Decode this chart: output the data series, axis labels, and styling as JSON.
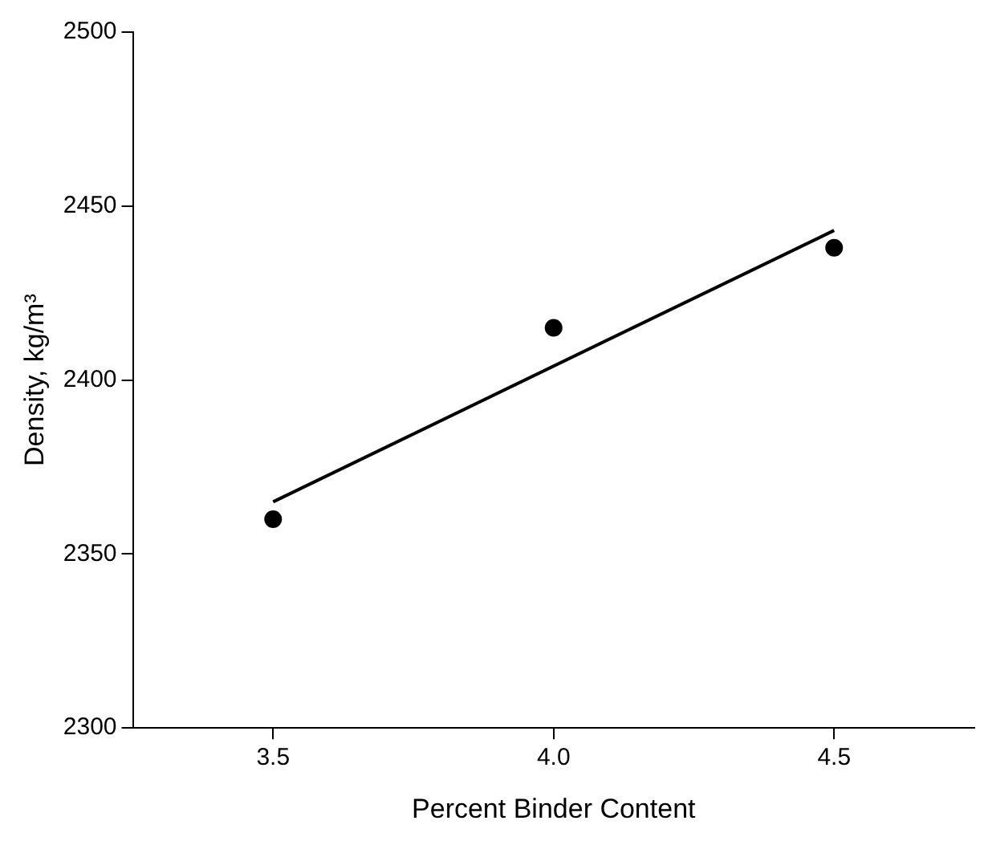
{
  "chart_data": {
    "type": "scatter",
    "xlabel": "Percent Binder Content",
    "ylabel": "Density, kg/m³",
    "series": [
      {
        "marker": "circle",
        "x": [
          3.5,
          4.0,
          4.5
        ],
        "values": [
          2360,
          2415,
          2438
        ],
        "color": "#000000"
      },
      {
        "type": "line",
        "marker": "none",
        "x": [
          3.5,
          4.5
        ],
        "values": [
          2365,
          2443
        ],
        "color": "#000000"
      }
    ],
    "xlim": [
      3.25,
      4.75
    ],
    "xticks": [
      {
        "value": 3.5,
        "label": "3.5"
      },
      {
        "value": 4.0,
        "label": "4.0"
      },
      {
        "value": 4.5,
        "label": "4.5"
      }
    ],
    "ylim": [
      2300,
      2500
    ],
    "yticks": [
      2300,
      2350,
      2400,
      2450,
      2500
    ],
    "grid": false,
    "legend": false
  }
}
